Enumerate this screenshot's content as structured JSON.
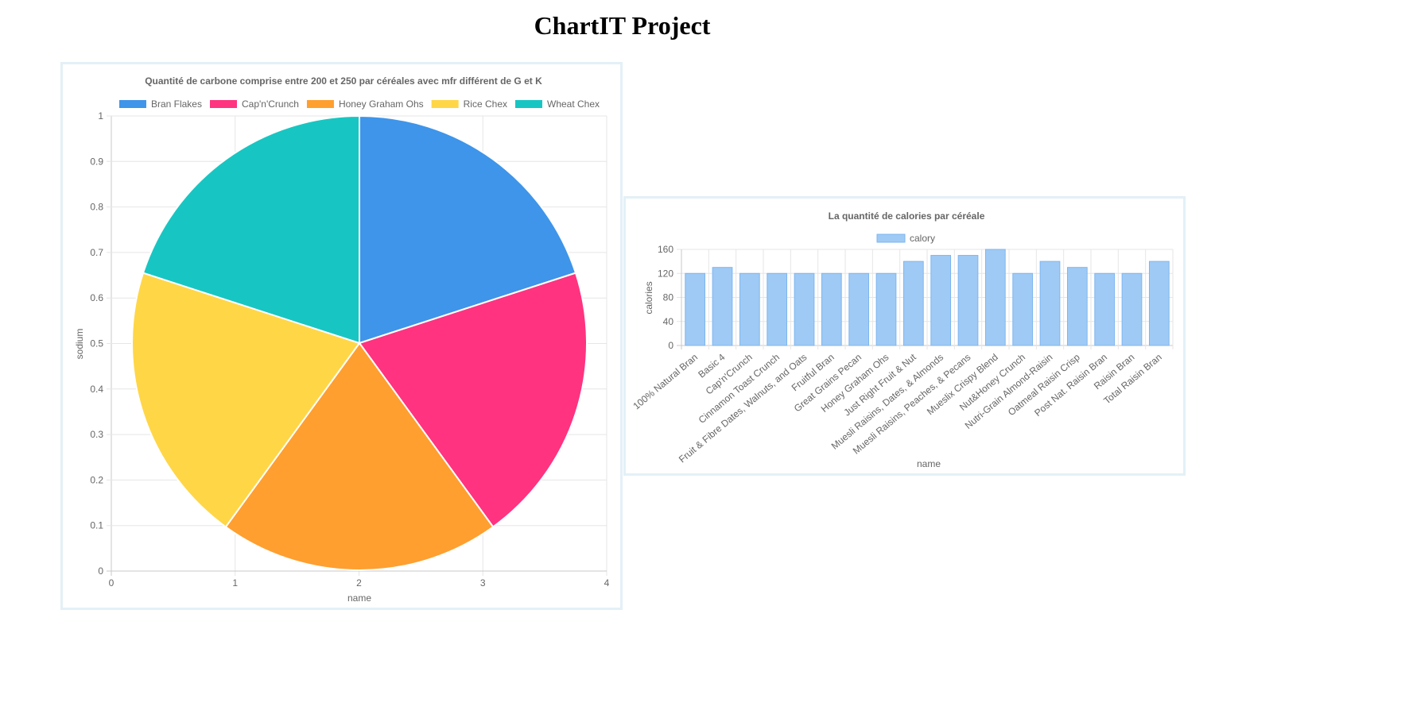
{
  "page_title": "ChartIT Project",
  "chart_data": [
    {
      "type": "pie",
      "title": "Quantité de carbone comprise entre 200 et 250 par céréales avec mfr différent de G et K",
      "xlabel": "name",
      "ylabel": "sodium",
      "xlim": [
        0,
        4
      ],
      "ylim": [
        0,
        1
      ],
      "x_ticks": [
        "0",
        "1",
        "2",
        "3",
        "4"
      ],
      "y_ticks": [
        "0",
        "0.1",
        "0.2",
        "0.3",
        "0.4",
        "0.5",
        "0.6",
        "0.7",
        "0.8",
        "0.9",
        "1"
      ],
      "grid": true,
      "legend_position": "top",
      "slices": [
        {
          "label": "Bran Flakes",
          "value": 20,
          "color": "#3e95ea"
        },
        {
          "label": "Cap'n'Crunch",
          "value": 20,
          "color": "#ff3380"
        },
        {
          "label": "Honey Graham Ohs",
          "value": 20,
          "color": "#ff9f2f"
        },
        {
          "label": "Rice Chex",
          "value": 20,
          "color": "#ffd646"
        },
        {
          "label": "Wheat Chex",
          "value": 20,
          "color": "#17c6c2"
        }
      ]
    },
    {
      "type": "bar",
      "title": "La quantité de calories par céréale",
      "xlabel": "name",
      "ylabel": "calories",
      "ylim": [
        0,
        160
      ],
      "y_ticks": [
        "0",
        "40",
        "80",
        "120",
        "160"
      ],
      "grid": true,
      "legend_position": "top",
      "categories": [
        "100% Natural Bran",
        "Basic 4",
        "Cap'n'Crunch",
        "Cinnamon Toast Crunch",
        "Fruit & Fibre Dates, Walnuts, and Oats",
        "Fruitful Bran",
        "Great Grains Pecan",
        "Honey Graham Ohs",
        "Just Right Fruit & Nut",
        "Muesli Raisins, Dates, & Almonds",
        "Muesli Raisins, Peaches, & Pecans",
        "Mueslix Crispy Blend",
        "Nut&Honey Crunch",
        "Nutri-Grain Almond-Raisin",
        "Oatmeal Raisin Crisp",
        "Post Nat. Raisin Bran",
        "Raisin Bran",
        "Total Raisin Bran"
      ],
      "series": [
        {
          "name": "calory",
          "color": "#9fcaf5",
          "border": "#7db6ef",
          "values": [
            120,
            130,
            120,
            120,
            120,
            120,
            120,
            120,
            140,
            150,
            150,
            160,
            120,
            140,
            130,
            120,
            120,
            140
          ]
        }
      ]
    }
  ]
}
